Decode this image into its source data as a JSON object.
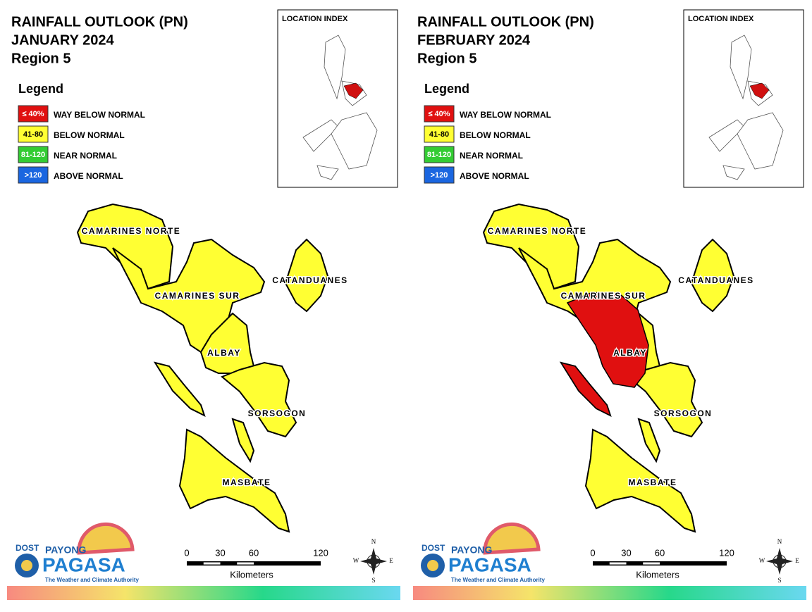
{
  "panels": [
    {
      "title": [
        "RAINFALL OUTLOOK (PN)",
        "JANUARY 2024",
        "Region 5"
      ],
      "location_index": "LOCATION INDEX",
      "legend": {
        "title": "Legend",
        "items": [
          {
            "swatch": "≤ 40%",
            "label": "WAY BELOW NORMAL",
            "color": "#e01010"
          },
          {
            "swatch": "41-80",
            "label": "BELOW NORMAL",
            "color": "#ffff33"
          },
          {
            "swatch": "81-120",
            "label": "NEAR NORMAL",
            "color": "#33cc33"
          },
          {
            "swatch": ">120",
            "label": "ABOVE NORMAL",
            "color": "#1a66e0"
          }
        ]
      },
      "provinces": [
        "CAMARINES NORTE",
        "CAMARINES SUR",
        "CATANDUANES",
        "ALBAY",
        "SORSOGON",
        "MASBATE"
      ],
      "scale": {
        "ticks": [
          0,
          30,
          60,
          120
        ],
        "unit": "Kilometers"
      },
      "compass": [
        "N",
        "E",
        "S",
        "W"
      ],
      "logo": {
        "agency": "DOST",
        "brand_top": "PAYONG",
        "brand": "PAGASA",
        "tagline": "The Weather and Climate Authority"
      }
    },
    {
      "title": [
        "RAINFALL OUTLOOK (PN)",
        "FEBRUARY 2024",
        "Region 5"
      ],
      "location_index": "LOCATION INDEX",
      "legend": {
        "title": "Legend",
        "items": [
          {
            "swatch": "≤ 40%",
            "label": "WAY BELOW NORMAL",
            "color": "#e01010"
          },
          {
            "swatch": "41-80",
            "label": "BELOW NORMAL",
            "color": "#ffff33"
          },
          {
            "swatch": "81-120",
            "label": "NEAR NORMAL",
            "color": "#33cc33"
          },
          {
            "swatch": ">120",
            "label": "ABOVE NORMAL",
            "color": "#1a66e0"
          }
        ]
      },
      "provinces": [
        "CAMARINES SUR",
        "CAMARINES NORTE",
        "CATANDUANES",
        "ALBAY",
        "SORSOGON",
        "MASBATE"
      ],
      "scale": {
        "ticks": [
          0,
          30,
          60,
          120
        ],
        "unit": "Kilometers"
      },
      "compass": [
        "N",
        "E",
        "S",
        "W"
      ],
      "logo": {
        "agency": "DOST",
        "brand_top": "PAYONG",
        "brand": "PAGASA",
        "tagline": "The Weather and Climate Authority"
      }
    }
  ]
}
